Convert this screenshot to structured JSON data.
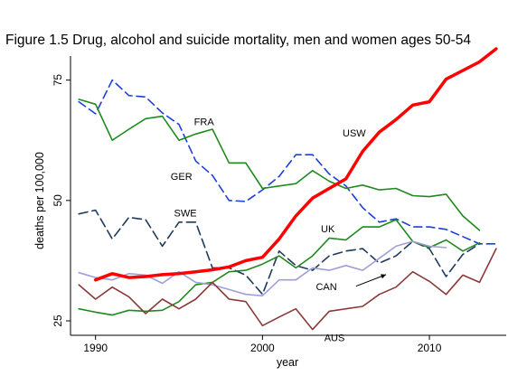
{
  "chart_data": {
    "type": "line",
    "title": "Figure 1.5  Drug, alcohol and suicide mortality, men and women ages 50-54",
    "xlabel": "year",
    "ylabel": "deaths per 100,000",
    "xlim": [
      1988.5,
      2014.6
    ],
    "ylim": [
      22,
      80
    ],
    "xticks": [
      1990,
      2000,
      2010
    ],
    "yticks": [
      25,
      50,
      75
    ],
    "grid": false,
    "legend": "none",
    "series": [
      {
        "name": "USW",
        "color": "#ff0000",
        "width": 3.5,
        "dash": "",
        "x": [
          1990,
          1991,
          1992,
          1993,
          1994,
          1995,
          1996,
          1997,
          1998,
          1999,
          2000,
          2001,
          2002,
          2003,
          2004,
          2005,
          2006,
          2007,
          2008,
          2009,
          2010,
          2011,
          2012,
          2013,
          2014
        ],
        "y": [
          33.5,
          34.8,
          34.0,
          34.2,
          34.6,
          34.8,
          35.2,
          35.6,
          36.2,
          37.5,
          38.2,
          42.0,
          46.8,
          50.5,
          52.5,
          54.5,
          60.2,
          64.2,
          66.8,
          69.8,
          70.5,
          75.2,
          77.0,
          78.8,
          81.5
        ]
      },
      {
        "name": "FRA",
        "color": "#1f3fdd",
        "width": 1.6,
        "dash": "9,5",
        "x": [
          1989,
          1990,
          1991,
          1992,
          1993,
          1994,
          1995,
          1996,
          1997,
          1998,
          1999,
          2000,
          2001,
          2002,
          2003,
          2004,
          2005,
          2006,
          2007,
          2008,
          2009,
          2010,
          2011,
          2012,
          2013,
          2014
        ],
        "y": [
          70.5,
          68.0,
          75.0,
          71.8,
          71.5,
          68.2,
          65.8,
          58.2,
          55.2,
          50.0,
          49.8,
          52.2,
          55.0,
          59.5,
          59.5,
          55.5,
          53.0,
          48.5,
          45.5,
          46.2,
          44.5,
          44.5,
          44.0,
          42.5,
          41.0,
          41.0
        ]
      },
      {
        "name": "GER",
        "color": "#1f8a1f",
        "width": 1.6,
        "dash": "",
        "x": [
          1989,
          1990,
          1991,
          1992,
          1993,
          1994,
          1995,
          1996,
          1997,
          1998,
          1999,
          2000,
          2001,
          2002,
          2003,
          2004,
          2005,
          2006,
          2007,
          2008,
          2009,
          2010,
          2011,
          2012,
          2013
        ],
        "y": [
          71.0,
          70.0,
          62.5,
          64.8,
          67.0,
          67.5,
          62.5,
          63.8,
          64.8,
          57.8,
          57.8,
          52.5,
          53.0,
          53.5,
          56.2,
          54.0,
          52.5,
          53.2,
          52.2,
          52.5,
          51.0,
          50.8,
          51.3,
          46.8,
          43.8
        ]
      },
      {
        "name": "SWE",
        "color": "#1f3a5f",
        "width": 1.6,
        "dash": "10,5",
        "x": [
          1989,
          1990,
          1991,
          1992,
          1993,
          1994,
          1995,
          1996,
          1997,
          1998,
          1999,
          2000,
          2001,
          2002,
          2003,
          2004,
          2005,
          2006,
          2007,
          2008,
          2009,
          2010,
          2011,
          2012,
          2013
        ],
        "y": [
          47.2,
          48.0,
          42.0,
          46.5,
          46.0,
          40.5,
          45.5,
          45.5,
          36.0,
          36.0,
          34.5,
          30.5,
          39.5,
          36.5,
          35.5,
          38.5,
          39.5,
          40.0,
          37.0,
          38.5,
          41.5,
          40.0,
          34.2,
          38.8,
          41.0
        ]
      },
      {
        "name": "UK",
        "color": "#1f8a1f",
        "width": 1.6,
        "dash": "",
        "x": [
          1989,
          1990,
          1991,
          1992,
          1993,
          1994,
          1995,
          1996,
          1997,
          1998,
          1999,
          2000,
          2001,
          2002,
          2003,
          2004,
          2005,
          2006,
          2007,
          2008,
          2009,
          2010,
          2011,
          2012,
          2013
        ],
        "y": [
          27.5,
          26.8,
          26.2,
          27.2,
          27.0,
          27.2,
          29.0,
          32.5,
          33.0,
          35.2,
          35.5,
          36.8,
          38.5,
          36.0,
          38.5,
          42.2,
          41.8,
          44.5,
          44.5,
          46.0,
          41.5,
          40.2,
          41.8,
          39.5,
          41.2
        ]
      },
      {
        "name": "CAN",
        "color": "#9f9fd8",
        "width": 1.6,
        "dash": "",
        "x": [
          1989,
          1990,
          1991,
          1992,
          1993,
          1994,
          1995,
          1996,
          1997,
          1998,
          1999,
          2000,
          2001,
          2002,
          2003,
          2004,
          2005,
          2006,
          2007,
          2008,
          2009,
          2010,
          2011
        ],
        "y": [
          35.0,
          34.0,
          33.5,
          34.8,
          34.5,
          32.8,
          35.2,
          33.0,
          32.5,
          31.5,
          30.5,
          30.2,
          33.5,
          33.5,
          36.0,
          35.5,
          36.5,
          35.5,
          38.0,
          40.5,
          41.5,
          40.5,
          40.2
        ]
      },
      {
        "name": "AUS",
        "color": "#8b3a3a",
        "width": 1.6,
        "dash": "",
        "x": [
          1989,
          1990,
          1991,
          1992,
          1993,
          1994,
          1995,
          1996,
          1997,
          1998,
          1999,
          2000,
          2001,
          2002,
          2003,
          2004,
          2005,
          2006,
          2007,
          2008,
          2009,
          2010,
          2011,
          2012,
          2013,
          2014
        ],
        "y": [
          32.5,
          29.5,
          32.0,
          30.0,
          26.5,
          29.5,
          27.5,
          29.5,
          33.0,
          29.5,
          29.0,
          24.0,
          25.8,
          27.5,
          23.2,
          27.0,
          27.5,
          28.0,
          30.5,
          32.0,
          35.2,
          33.2,
          30.5,
          34.5,
          33.0,
          40.0
        ]
      }
    ],
    "annotations": [
      {
        "text": "FRA",
        "x": 1995.9,
        "y": 65.6
      },
      {
        "text": "USW",
        "x": 2004.8,
        "y": 63.3
      },
      {
        "text": "GER",
        "x": 1994.5,
        "y": 54.3
      },
      {
        "text": "SWE",
        "x": 1994.7,
        "y": 46.7
      },
      {
        "text": "UK",
        "x": 2003.5,
        "y": 43.4
      },
      {
        "text": "CAN",
        "x": 2003.2,
        "y": 31.4
      },
      {
        "text": "AUS",
        "x": 2003.7,
        "y": 20.8
      }
    ],
    "arrow": {
      "from": [
        2005.6,
        32.2
      ],
      "to": [
        2007.4,
        34.6
      ]
    }
  }
}
